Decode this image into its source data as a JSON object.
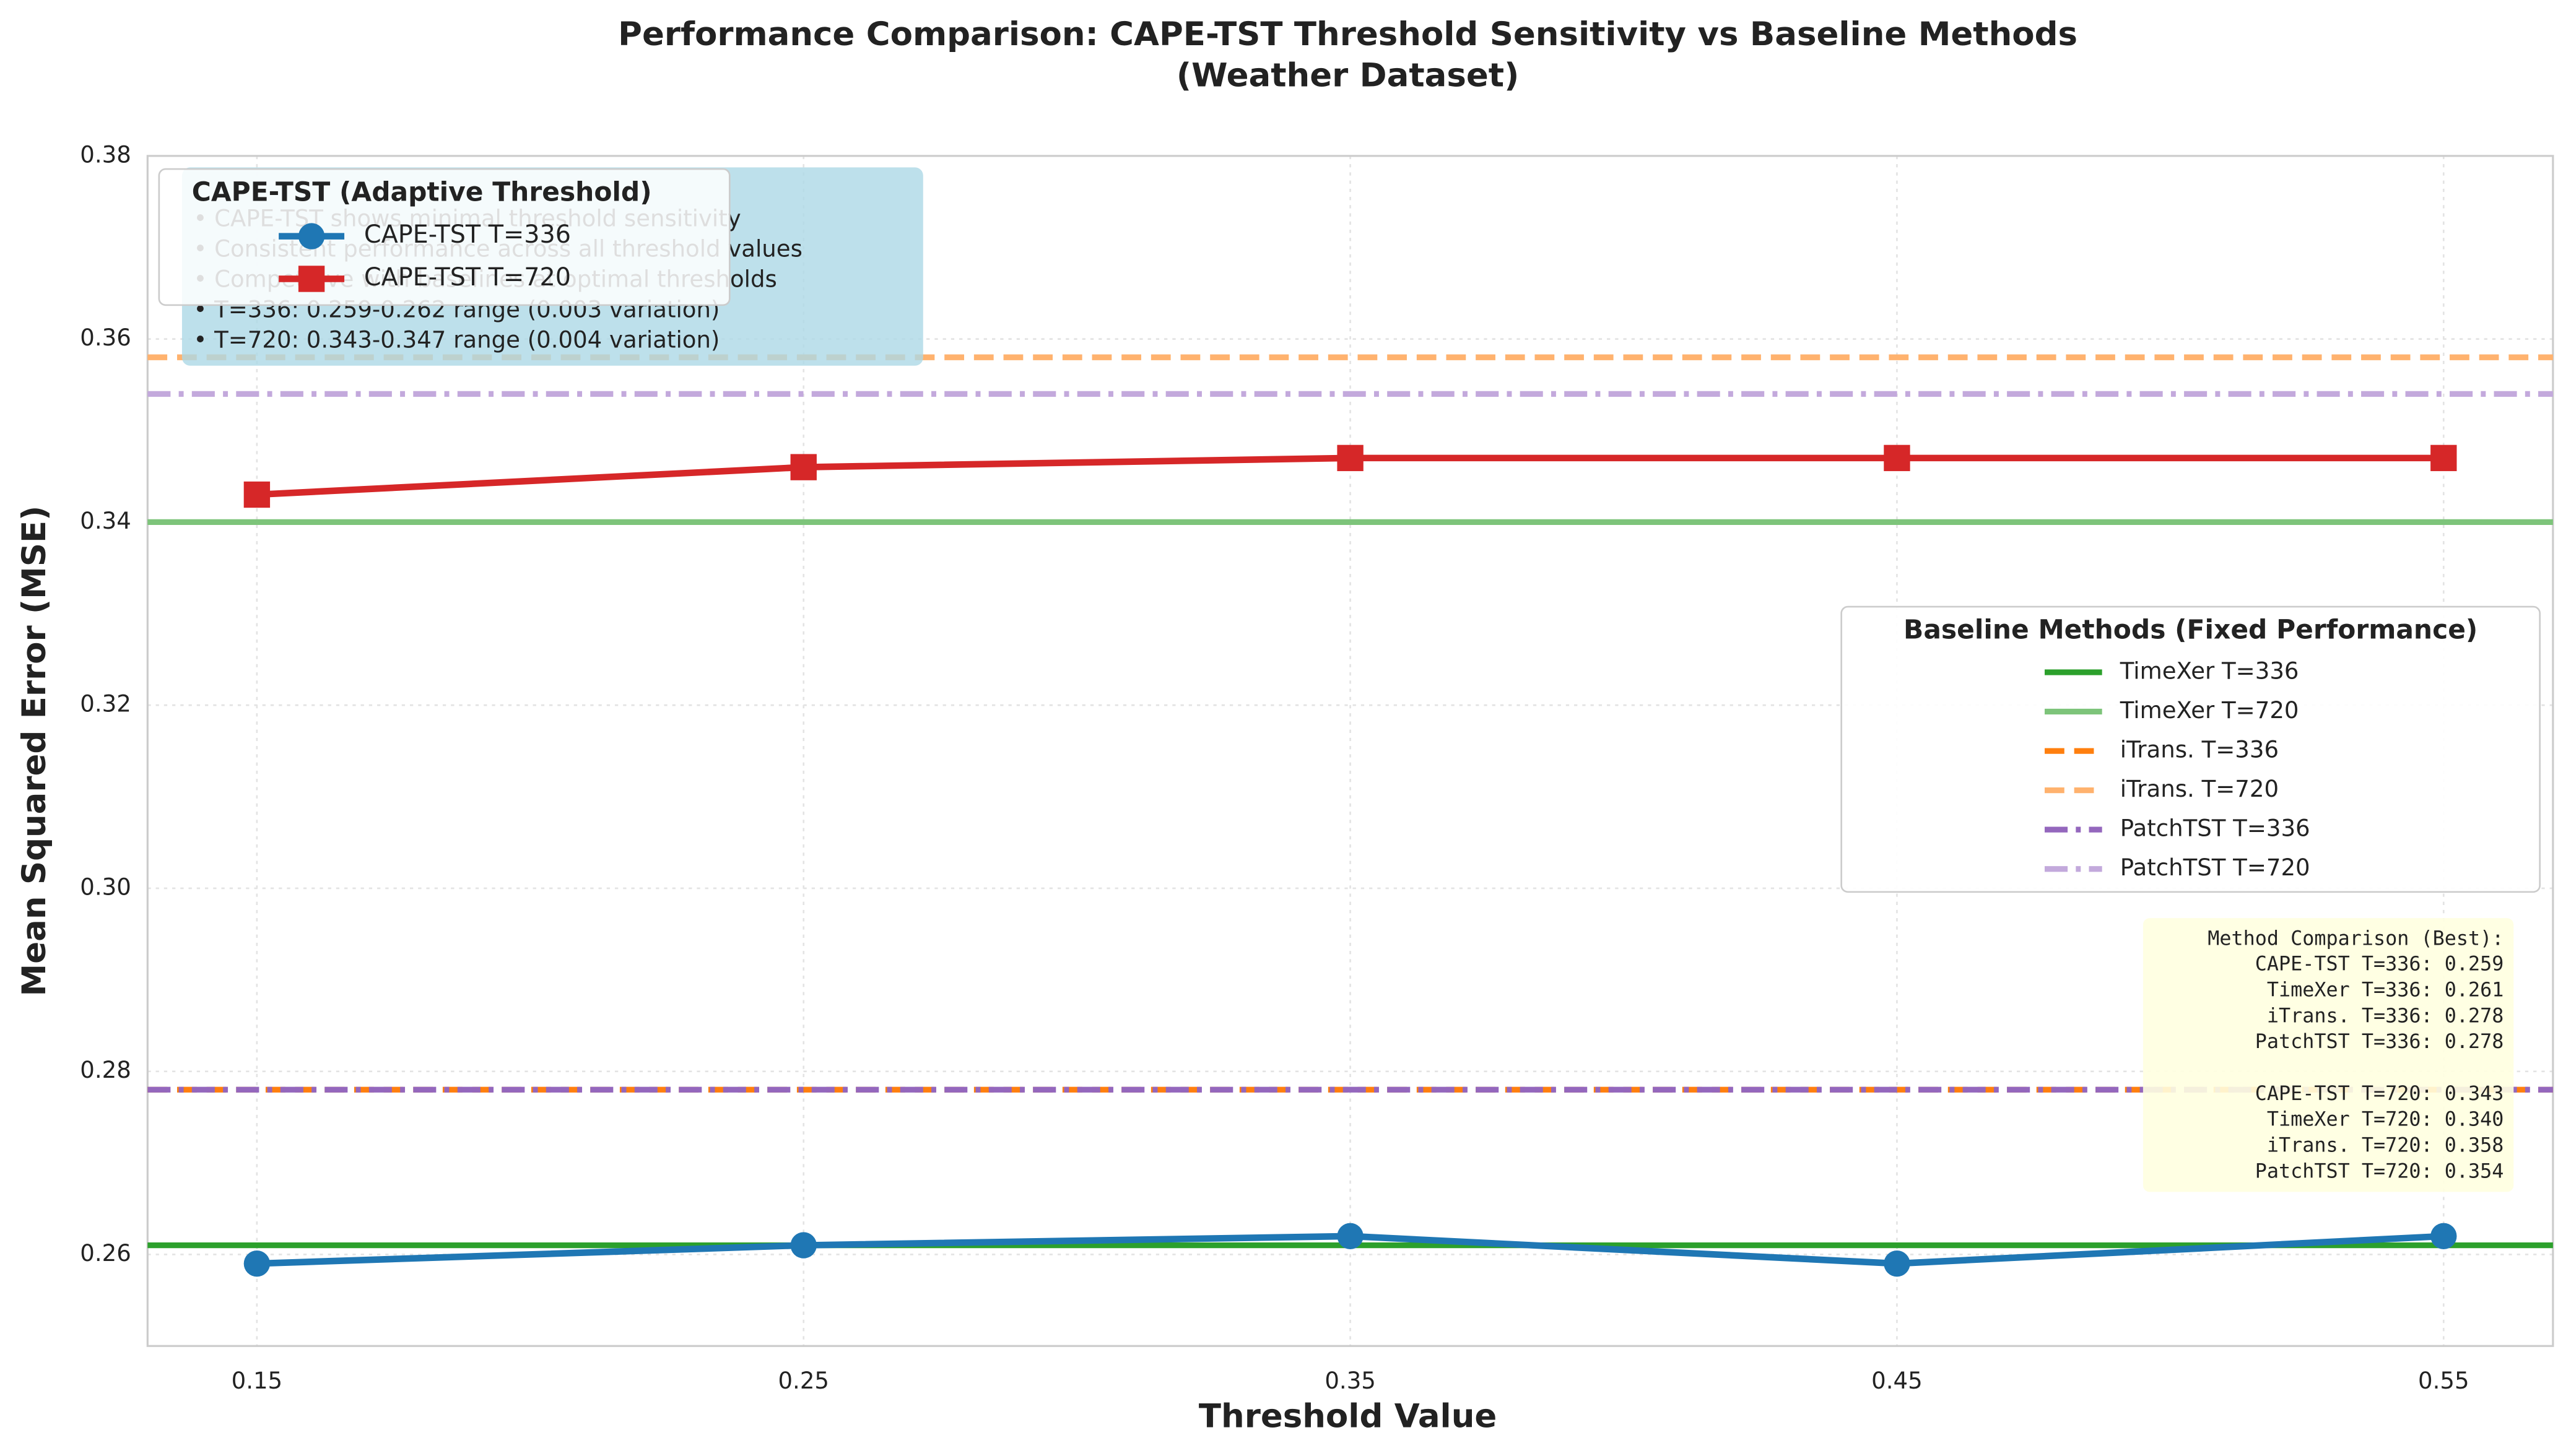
{
  "chart_data": {
    "type": "line",
    "title_lines": [
      "Performance Comparison: CAPE-TST Threshold Sensitivity vs Baseline Methods",
      "(Weather Dataset)"
    ],
    "x_label": "Threshold Value",
    "y_label": "Mean Squared Error (MSE)",
    "x": [
      0.15,
      0.25,
      0.35,
      0.45,
      0.55
    ],
    "xlim": [
      0.13,
      0.57
    ],
    "xticks": [
      0.15,
      0.25,
      0.35,
      0.45,
      0.55
    ],
    "ylim": [
      0.25,
      0.38
    ],
    "yticks": [
      0.26,
      0.28,
      {
        "value": 0.3,
        "label": "0.30"
      },
      0.32,
      0.34,
      0.36,
      0.38
    ],
    "grid": true,
    "legend_title": "CAPE-TST (Adaptive Threshold)",
    "series": [
      {
        "name": "CAPE-TST T=336",
        "color": "#1f77b4",
        "marker": "circle",
        "values": [
          0.259,
          0.261,
          0.262,
          0.259,
          0.262
        ]
      },
      {
        "name": "CAPE-TST T=720",
        "color": "#d62728",
        "marker": "square",
        "values": [
          0.343,
          0.346,
          0.347,
          0.347,
          0.347
        ]
      }
    ],
    "baseline_legend_title": "Baseline Methods (Fixed Performance)",
    "baselines": [
      {
        "name": "TimeXer T=336",
        "color": "#2ca02c",
        "dash": "solid",
        "value": 0.261
      },
      {
        "name": "TimeXer T=720",
        "color": "#7dc47a",
        "dash": "solid",
        "value": 0.34
      },
      {
        "name": "iTrans. T=336",
        "color": "#ff7f0e",
        "dash": "dashed",
        "value": 0.278
      },
      {
        "name": "iTrans. T=720",
        "color": "#ffb26e",
        "dash": "dashed",
        "value": 0.358
      },
      {
        "name": "PatchTST T=336",
        "color": "#9467bd",
        "dash": "dashdot",
        "value": 0.278
      },
      {
        "name": "PatchTST T=720",
        "color": "#c3a9dc",
        "dash": "dashdot",
        "value": 0.354
      }
    ],
    "annotation_lines": [
      "• CAPE-TST shows minimal threshold sensitivity",
      "• Consistent performance across all threshold values",
      "• Competitive with baselines at optimal thresholds",
      "• T=336: 0.259-0.262 range (0.003 variation)",
      "• T=720: 0.343-0.347 range (0.004 variation)"
    ],
    "comparison": {
      "title": "Method Comparison (Best):",
      "groups": [
        [
          "CAPE-TST T=336: 0.259",
          "TimeXer T=336: 0.261",
          "iTrans. T=336: 0.278",
          "PatchTST T=336: 0.278"
        ],
        [
          "CAPE-TST T=720: 0.343",
          "TimeXer T=720: 0.340",
          "iTrans. T=720: 0.358",
          "PatchTST T=720: 0.354"
        ]
      ]
    }
  }
}
